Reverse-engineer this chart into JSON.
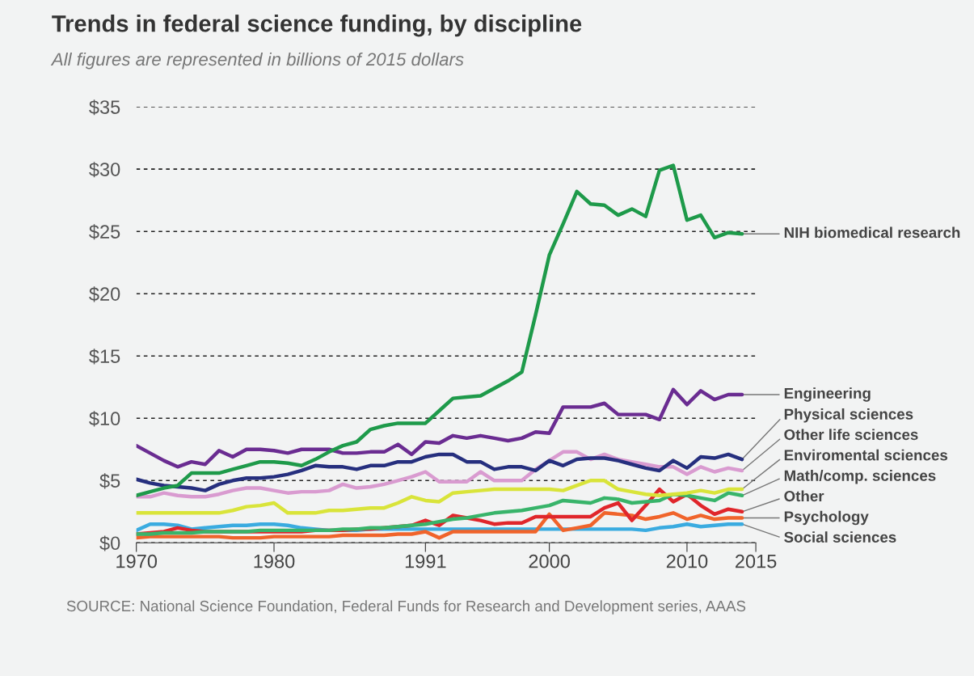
{
  "chart_data": {
    "type": "line",
    "title": "Trends in federal science funding, by discipline",
    "subtitle": "All figures are represented in billions of 2015 dollars",
    "annotations": [
      "SOURCE: National Science Foundation, Federal Funds for Research and Development series, AAAS"
    ],
    "x": [
      1970,
      1971,
      1972,
      1973,
      1974,
      1975,
      1976,
      1977,
      1978,
      1979,
      1980,
      1981,
      1982,
      1983,
      1984,
      1985,
      1986,
      1987,
      1988,
      1989,
      1990,
      1991,
      1992,
      1993,
      1994,
      1995,
      1996,
      1997,
      1998,
      1999,
      2000,
      2001,
      2002,
      2003,
      2004,
      2005,
      2006,
      2007,
      2008,
      2009,
      2010,
      2011,
      2012,
      2013,
      2014
    ],
    "series": [
      {
        "name": "NIH biomedical research",
        "color": "#1e9a4a",
        "values": [
          3.8,
          4.1,
          4.4,
          4.6,
          5.6,
          5.6,
          5.6,
          5.9,
          6.2,
          6.5,
          6.5,
          6.4,
          6.2,
          6.7,
          7.3,
          7.8,
          8.1,
          9.1,
          9.4,
          9.6,
          9.6,
          9.6,
          10.6,
          11.6,
          11.7,
          11.8,
          12.4,
          13.0,
          13.7,
          18.3,
          23.1,
          25.6,
          28.2,
          27.2,
          27.1,
          26.3,
          26.8,
          26.2,
          29.9,
          30.3,
          25.9,
          26.3,
          24.5,
          24.9,
          24.8
        ]
      },
      {
        "name": "Engineering",
        "color": "#6a2c91",
        "values": [
          7.8,
          7.2,
          6.6,
          6.1,
          6.5,
          6.3,
          7.4,
          6.9,
          7.5,
          7.5,
          7.4,
          7.2,
          7.5,
          7.5,
          7.5,
          7.2,
          7.2,
          7.3,
          7.3,
          7.9,
          7.1,
          8.1,
          8.0,
          8.6,
          8.4,
          8.6,
          8.4,
          8.2,
          8.4,
          8.9,
          8.8,
          10.9,
          10.9,
          10.9,
          11.2,
          10.3,
          10.3,
          10.3,
          9.9,
          12.3,
          11.1,
          12.2,
          11.5,
          11.9,
          11.9
        ]
      },
      {
        "name": "Physical sciences",
        "color": "#262f7e",
        "values": [
          5.1,
          4.8,
          4.6,
          4.5,
          4.4,
          4.2,
          4.7,
          5.0,
          5.2,
          5.2,
          5.3,
          5.5,
          5.8,
          6.2,
          6.1,
          6.1,
          5.9,
          6.2,
          6.2,
          6.5,
          6.5,
          6.9,
          7.1,
          7.1,
          6.5,
          6.5,
          5.9,
          6.1,
          6.1,
          5.8,
          6.6,
          6.2,
          6.7,
          6.8,
          6.8,
          6.6,
          6.3,
          6.0,
          5.8,
          6.6,
          6.0,
          6.9,
          6.8,
          7.1,
          6.7
        ]
      },
      {
        "name": "Other life sciences",
        "color": "#d99bd0",
        "values": [
          3.7,
          3.7,
          4.0,
          3.8,
          3.7,
          3.7,
          3.9,
          4.2,
          4.4,
          4.4,
          4.2,
          4.0,
          4.1,
          4.1,
          4.2,
          4.7,
          4.4,
          4.5,
          4.7,
          5.0,
          5.3,
          5.7,
          4.9,
          4.9,
          4.9,
          5.7,
          5.0,
          5.0,
          5.0,
          5.9,
          6.6,
          7.3,
          7.3,
          6.7,
          7.1,
          6.7,
          6.5,
          6.3,
          6.1,
          6.1,
          5.5,
          6.1,
          5.7,
          6.0,
          5.8
        ]
      },
      {
        "name": "Enviromental sciences",
        "color": "#d9e43a",
        "values": [
          2.4,
          2.4,
          2.4,
          2.4,
          2.4,
          2.4,
          2.4,
          2.6,
          2.9,
          3.0,
          3.2,
          2.4,
          2.4,
          2.4,
          2.6,
          2.6,
          2.7,
          2.8,
          2.8,
          3.2,
          3.7,
          3.4,
          3.3,
          4.0,
          4.1,
          4.2,
          4.3,
          4.3,
          4.3,
          4.3,
          4.3,
          4.2,
          4.6,
          5.0,
          5.0,
          4.3,
          4.1,
          3.9,
          3.8,
          3.9,
          4.0,
          4.2,
          4.0,
          4.3,
          4.3
        ]
      },
      {
        "name": "Math/comp. sciences",
        "color": "#38b46a",
        "values": [
          0.7,
          0.7,
          0.8,
          0.8,
          0.8,
          0.9,
          0.9,
          0.9,
          0.9,
          1.0,
          1.0,
          1.0,
          1.0,
          1.0,
          1.0,
          1.1,
          1.1,
          1.2,
          1.2,
          1.3,
          1.4,
          1.5,
          1.7,
          1.9,
          2.0,
          2.2,
          2.4,
          2.5,
          2.6,
          2.8,
          3.0,
          3.4,
          3.3,
          3.2,
          3.6,
          3.5,
          3.2,
          3.3,
          3.4,
          3.9,
          3.8,
          3.6,
          3.4,
          4.0,
          3.8
        ]
      },
      {
        "name": "Other",
        "color": "#e0262b",
        "values": [
          0.7,
          0.8,
          0.9,
          1.2,
          1.0,
          0.9,
          0.9,
          0.9,
          0.9,
          0.9,
          0.9,
          0.9,
          0.9,
          1.0,
          1.0,
          1.0,
          1.1,
          1.1,
          1.2,
          1.3,
          1.4,
          1.8,
          1.4,
          2.2,
          2.0,
          1.8,
          1.5,
          1.6,
          1.6,
          2.1,
          2.1,
          2.1,
          2.1,
          2.1,
          2.8,
          3.2,
          1.8,
          3.0,
          4.3,
          3.3,
          3.9,
          3.0,
          2.3,
          2.7,
          2.5
        ]
      },
      {
        "name": "Psychology",
        "color": "#f0642b",
        "values": [
          0.4,
          0.5,
          0.5,
          0.5,
          0.5,
          0.5,
          0.5,
          0.4,
          0.4,
          0.4,
          0.5,
          0.5,
          0.5,
          0.5,
          0.5,
          0.6,
          0.6,
          0.6,
          0.6,
          0.7,
          0.7,
          0.9,
          0.4,
          0.9,
          0.9,
          0.9,
          0.9,
          0.9,
          0.9,
          0.9,
          2.3,
          1.0,
          1.2,
          1.4,
          2.4,
          2.3,
          2.2,
          1.9,
          2.1,
          2.4,
          1.9,
          2.2,
          1.9,
          2.0,
          2.0
        ]
      },
      {
        "name": "Social sciences",
        "color": "#3aabe0",
        "values": [
          1.0,
          1.5,
          1.5,
          1.4,
          1.1,
          1.2,
          1.3,
          1.4,
          1.4,
          1.5,
          1.5,
          1.4,
          1.2,
          1.1,
          1.0,
          1.0,
          1.0,
          1.1,
          1.1,
          1.1,
          1.1,
          1.1,
          1.1,
          1.1,
          1.1,
          1.1,
          1.1,
          1.1,
          1.1,
          1.1,
          1.1,
          1.1,
          1.1,
          1.1,
          1.1,
          1.1,
          1.1,
          1.0,
          1.2,
          1.3,
          1.5,
          1.3,
          1.4,
          1.5,
          1.5
        ]
      }
    ],
    "xlim": [
      1970,
      2015
    ],
    "xticks": [
      1970,
      1980,
      1991,
      2000,
      2010,
      2015
    ],
    "ylim": [
      0,
      35
    ],
    "yticks": [
      {
        "value": 0,
        "label": "$0"
      },
      {
        "value": 5,
        "label": "$5"
      },
      {
        "value": 10,
        "label": "$10"
      },
      {
        "value": 15,
        "label": "$15"
      },
      {
        "value": 20,
        "label": "$20"
      },
      {
        "value": 25,
        "label": "$25"
      },
      {
        "value": 30,
        "label": "$30"
      },
      {
        "value": 35,
        "label": "$35"
      }
    ],
    "grid": "y",
    "line_style": "solid"
  }
}
